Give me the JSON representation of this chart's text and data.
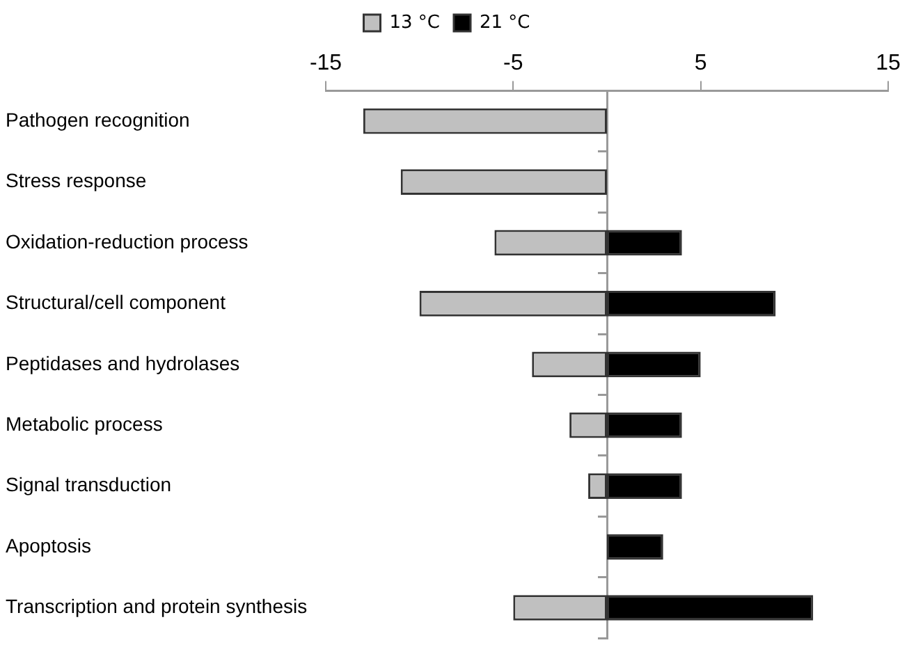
{
  "chart_data": {
    "type": "bar",
    "orientation": "horizontal",
    "categories": [
      "Pathogen recognition",
      "Stress response",
      "Oxidation-reduction process",
      "Structural/cell component",
      "Peptidases and hydrolases",
      "Metabolic process",
      "Signal transduction",
      "Apoptosis",
      "Transcription and protein synthesis"
    ],
    "series": [
      {
        "name": "13 °C",
        "color": "#c0c0c0",
        "values": [
          -13,
          -11,
          -6,
          -10,
          -4,
          -2,
          -1,
          0,
          -5
        ]
      },
      {
        "name": "21 °C",
        "color": "#000000",
        "values": [
          0,
          0,
          4,
          9,
          5,
          4,
          4,
          3,
          11
        ]
      }
    ],
    "stacked": true,
    "xlim": [
      -15,
      15
    ],
    "xticks": [
      -15,
      -5,
      5,
      15
    ],
    "grid": false,
    "legend": "top"
  }
}
